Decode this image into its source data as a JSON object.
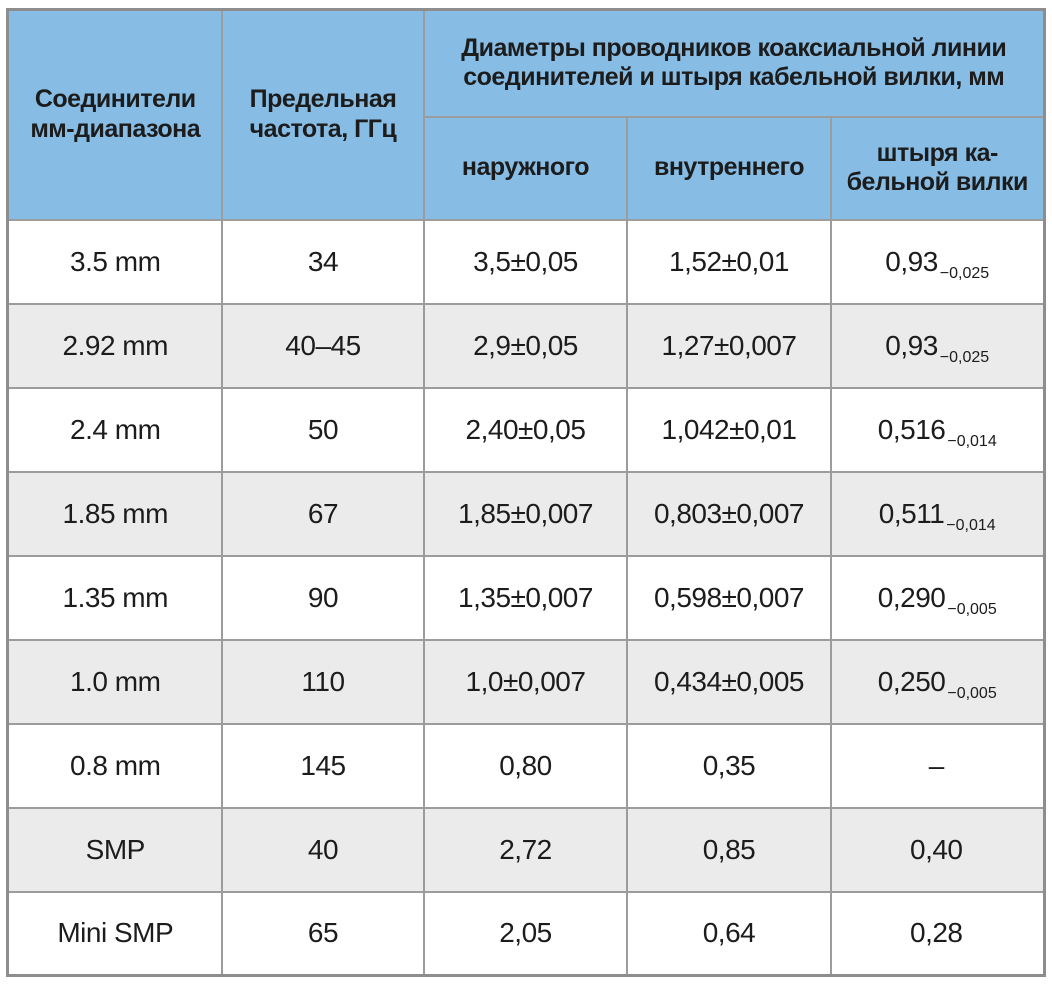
{
  "table": {
    "header": {
      "connectors": "Соединители мм-диапазона",
      "frequency": "Предельная частота, ГГц",
      "diameters_group": "Диаметры проводников коаксиальной линии соединителей и штыря кабельной вилки, мм",
      "outer": "наружного",
      "inner": "внутреннего",
      "pin": "штыря ка-бельной вилки"
    },
    "rows": [
      {
        "name": "3.5 mm",
        "frequency": "34",
        "outer": "3,5±0,05",
        "inner": "1,52±0,01",
        "pin": "0,93",
        "pin_tolerance": "−0,025"
      },
      {
        "name": "2.92 mm",
        "frequency": "40–45",
        "outer": "2,9±0,05",
        "inner": "1,27±0,007",
        "pin": "0,93",
        "pin_tolerance": "−0,025"
      },
      {
        "name": "2.4 mm",
        "frequency": "50",
        "outer": "2,40±0,05",
        "inner": "1,042±0,01",
        "pin": "0,516",
        "pin_tolerance": "−0,014"
      },
      {
        "name": "1.85 mm",
        "frequency": "67",
        "outer": "1,85±0,007",
        "inner": "0,803±0,007",
        "pin": "0,511",
        "pin_tolerance": "−0,014"
      },
      {
        "name": "1.35 mm",
        "frequency": "90",
        "outer": "1,35±0,007",
        "inner": "0,598±0,007",
        "pin": "0,290",
        "pin_tolerance": "−0,005"
      },
      {
        "name": "1.0 mm",
        "frequency": "110",
        "outer": "1,0±0,007",
        "inner": "0,434±0,005",
        "pin": "0,250",
        "pin_tolerance": "−0,005"
      },
      {
        "name": "0.8 mm",
        "frequency": "145",
        "outer": "0,80",
        "inner": "0,35",
        "pin": "–",
        "pin_tolerance": ""
      },
      {
        "name": "SMP",
        "frequency": "40",
        "outer": "2,72",
        "inner": "0,85",
        "pin": "0,40",
        "pin_tolerance": ""
      },
      {
        "name": "Mini SMP",
        "frequency": "65",
        "outer": "2,05",
        "inner": "0,64",
        "pin": "0,28",
        "pin_tolerance": ""
      }
    ],
    "colors": {
      "header_bg": "#87bce4",
      "row_alt_bg": "#ebebeb",
      "border": "#9c9c9c",
      "text": "#1c1c1c"
    }
  }
}
